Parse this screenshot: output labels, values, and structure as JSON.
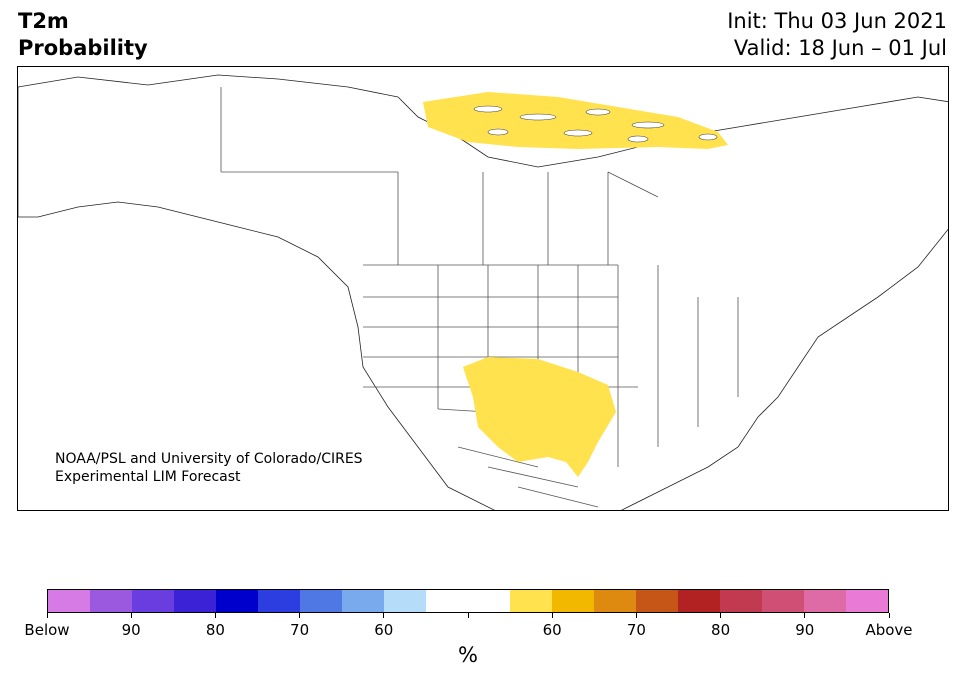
{
  "header": {
    "variable": "T2m",
    "product": "Probability",
    "init": "Init: Thu 03 Jun 2021",
    "valid": "Valid: 18 Jun – 01 Jul"
  },
  "credit": {
    "line1": "NOAA/PSL and University of Colorado/CIRES",
    "line2": "Experimental LIM Forecast"
  },
  "map": {
    "region": "North America",
    "highlight_color": "#ffe24d",
    "highlight_regions": [
      "Arctic Archipelago / Nunavut",
      "Southwest US and Northern Mexico"
    ]
  },
  "colorbar": {
    "colors": [
      "#d67ae6",
      "#9b59e0",
      "#6a3de0",
      "#3b22d6",
      "#0000cc",
      "#2c3ee0",
      "#4f78e4",
      "#79aaee",
      "#b5ddf9",
      "#ffffff",
      "#ffffff",
      "#ffe24d",
      "#f2b800",
      "#de8a10",
      "#c65618",
      "#b22222",
      "#c23a50",
      "#cf5074",
      "#de6aa6",
      "#e97ad6"
    ],
    "tick_labels": [
      "Below",
      "90",
      "80",
      "70",
      "60",
      "",
      "60",
      "70",
      "80",
      "90",
      "Above"
    ],
    "unit": "%"
  }
}
